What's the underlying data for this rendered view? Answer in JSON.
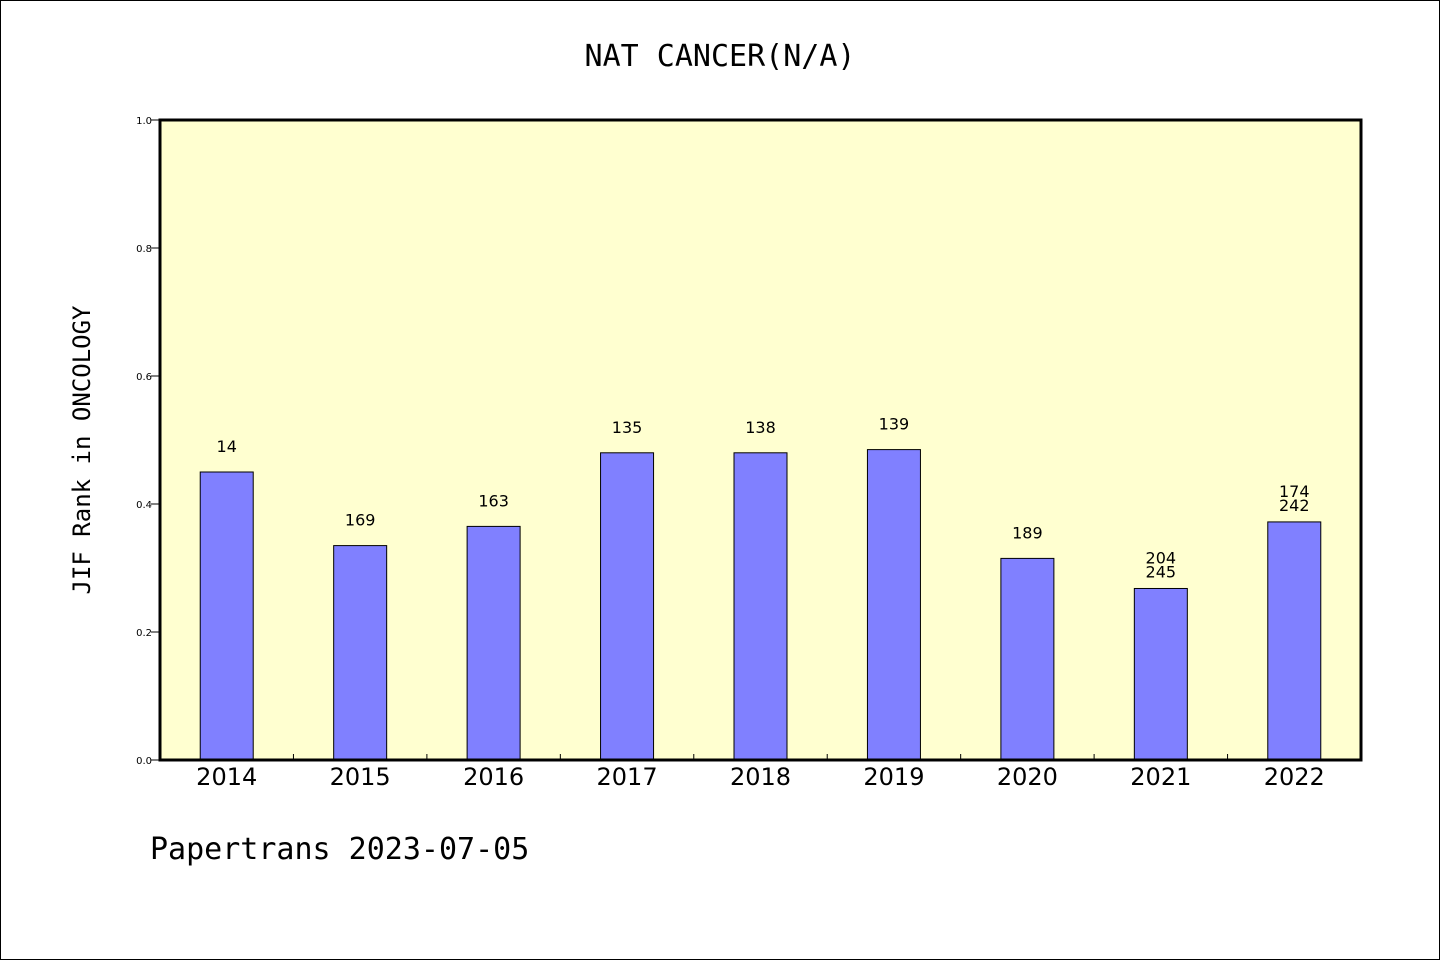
{
  "colors": {
    "plot_background": "#ffffd0",
    "bar_fill": "#8080ff",
    "axis": "#000000"
  },
  "chart_data": {
    "type": "bar",
    "title": "NAT CANCER(N/A)",
    "ylabel": "JIF Rank in ONCOLOGY",
    "xlabel": "",
    "categories": [
      "2014",
      "2015",
      "2016",
      "2017",
      "2018",
      "2019",
      "2020",
      "2021",
      "2022"
    ],
    "values": [
      0.45,
      0.335,
      0.365,
      0.48,
      0.48,
      0.485,
      0.315,
      0.268,
      0.372
    ],
    "bar_labels": [
      [
        "14"
      ],
      [
        "169"
      ],
      [
        "163"
      ],
      [
        "135"
      ],
      [
        "138"
      ],
      [
        "139"
      ],
      [
        "189"
      ],
      [
        "204",
        "245"
      ],
      [
        "174",
        "242"
      ]
    ],
    "ylim": [
      0,
      1
    ],
    "yticks": [
      "0.0",
      "0.2",
      "0.4",
      "0.6",
      "0.8",
      "1.0"
    ],
    "grid": false,
    "legend": "none"
  },
  "footer": {
    "text": "Papertrans 2023-07-05"
  }
}
